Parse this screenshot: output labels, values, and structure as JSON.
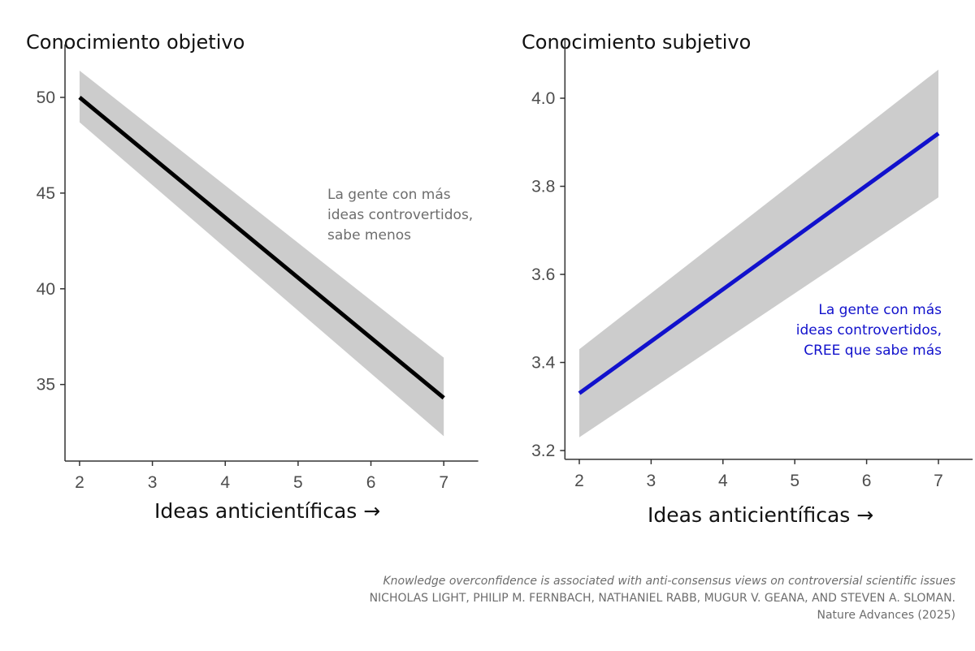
{
  "chart_data": [
    {
      "type": "line",
      "title": "Conocimiento objetivo",
      "xlabel": "Ideas anticientíficas →",
      "ylabel": "",
      "x_ticks": [
        2,
        3,
        4,
        5,
        6,
        7
      ],
      "y_ticks": [
        35,
        40,
        45,
        50
      ],
      "xlim": [
        1.8,
        7.25
      ],
      "ylim": [
        31.0,
        51.5
      ],
      "x": [
        2,
        7
      ],
      "series": [
        {
          "values": [
            50.0,
            34.3
          ],
          "ci_lower": [
            48.7,
            32.3
          ],
          "ci_upper": [
            51.4,
            36.4
          ],
          "color": "#000000"
        }
      ],
      "annotation": [
        "La gente con más",
        "ideas controvertidos,",
        "sabe menos"
      ],
      "annotation_color": "#6d6d6d"
    },
    {
      "type": "line",
      "title": "Conocimiento subjetivo",
      "xlabel": "Ideas anticientíficas →",
      "ylabel": "",
      "x_ticks": [
        2,
        3,
        4,
        5,
        6,
        7
      ],
      "y_ticks": [
        "3.2",
        "3.4",
        "3.6",
        "3.8",
        "4.0"
      ],
      "xlim": [
        1.8,
        7.25
      ],
      "ylim": [
        3.18,
        4.08
      ],
      "x": [
        2,
        7
      ],
      "series": [
        {
          "values": [
            3.33,
            3.92
          ],
          "ci_lower": [
            3.23,
            3.775
          ],
          "ci_upper": [
            3.43,
            4.065
          ],
          "color": "#1111cc"
        }
      ],
      "annotation": [
        "La gente con más",
        "ideas controvertidos,",
        "CREE que sabe más"
      ],
      "annotation_color": "#1111cc"
    }
  ],
  "footer": {
    "paper_title": "Knowledge overconfidence is associated with anti-consensus views on controversial scientific issues",
    "authors": "NICHOLAS LIGHT, PHILIP M. FERNBACH, NATHANIEL RABB, MUGUR V. GEANA, AND STEVEN A. SLOMAN.",
    "journal": "Nature Advances (2025)"
  },
  "colors": {
    "ci_band": "#cccccc",
    "axis": "#333333",
    "tick_text": "#4d4d4d"
  }
}
